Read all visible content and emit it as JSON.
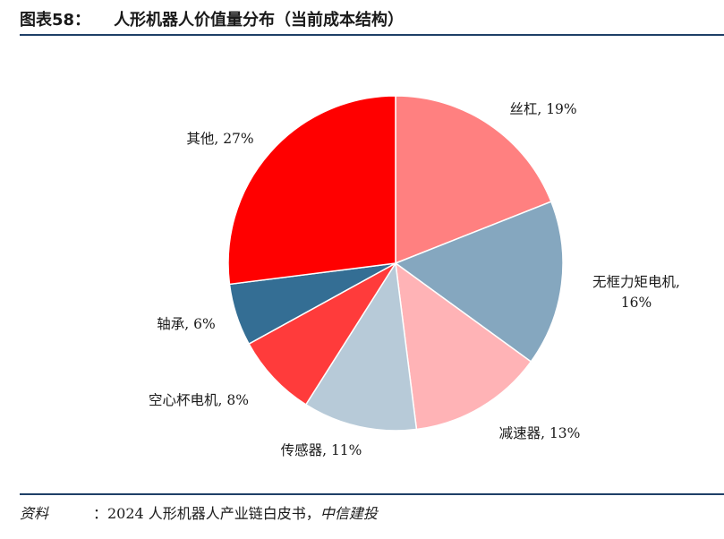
{
  "header": {
    "figure_number": "图表58：",
    "title": "人形机器人价值量分布（当前成本结构）"
  },
  "source": {
    "label": "资料",
    "text": "：2024 人形机器人产业链白皮书，",
    "org": "中信建投"
  },
  "chart_data": {
    "type": "pie",
    "title": "人形机器人价值量分布（当前成本结构）",
    "unit": "%",
    "start": "12 o'clock",
    "direction": "clockwise",
    "legend": "none",
    "slices": [
      {
        "name": "丝杠",
        "value": 19,
        "label": [
          "丝杠, 19%"
        ],
        "color": "#ff8080"
      },
      {
        "name": "无框力矩电机",
        "value": 16,
        "label": [
          "无框力矩电机,",
          "16%"
        ],
        "color": "#85a7bf"
      },
      {
        "name": "减速器",
        "value": 13,
        "label": [
          "减速器, 13%"
        ],
        "color": "#ffb3b6"
      },
      {
        "name": "传感器",
        "value": 11,
        "label": [
          "传感器, 11%"
        ],
        "color": "#b7cad8"
      },
      {
        "name": "空心杯电机",
        "value": 8,
        "label": [
          "空心杯电机, 8%"
        ],
        "color": "#ff3b3b"
      },
      {
        "name": "轴承",
        "value": 6,
        "label": [
          "轴承, 6%"
        ],
        "color": "#346e94"
      },
      {
        "name": "其他",
        "value": 27,
        "label": [
          "其他, 27%"
        ],
        "color": "#ff0000"
      }
    ]
  }
}
